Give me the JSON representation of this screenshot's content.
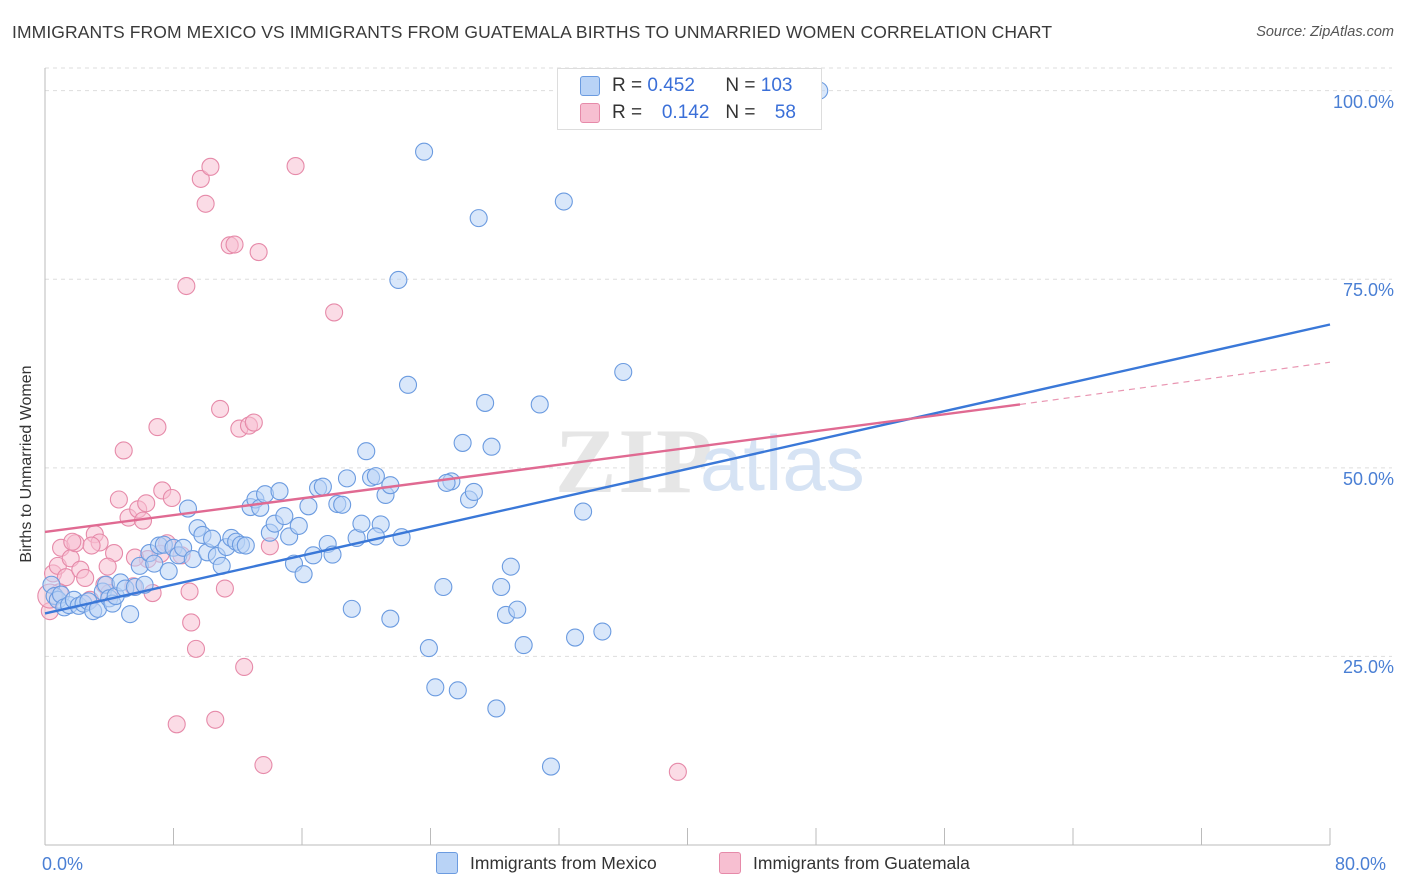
{
  "title": "IMMIGRANTS FROM MEXICO VS IMMIGRANTS FROM GUATEMALA BIRTHS TO UNMARRIED WOMEN CORRELATION CHART",
  "source": "Source: ZipAtlas.com",
  "watermark": {
    "zip": "ZIP",
    "atlas": "atlas"
  },
  "colors": {
    "blue": "#3a78d8",
    "blue_fill": "#b9d3f6",
    "pink": "#e06a92",
    "pink_fill": "#f7bfd1",
    "tick": "#4a7fd4",
    "grid": "#dddddd"
  },
  "stats": [
    {
      "r_label": "R =",
      "r": "0.452",
      "n_label": "N =",
      "n": "103"
    },
    {
      "r_label": "R =",
      "r": "0.142",
      "n_label": "N =",
      "n": "58"
    }
  ],
  "legend": [
    "Immigrants from Mexico",
    "Immigrants from Guatemala"
  ],
  "chart_data": {
    "type": "scatter",
    "ylabel": "Births to Unmarried Women",
    "xlabel": "",
    "xlim": [
      0,
      80
    ],
    "ylim": [
      0,
      103
    ],
    "x_tick_labels": [
      "0.0%",
      "80.0%"
    ],
    "y_ticks": [
      25,
      50,
      75,
      100
    ],
    "y_tick_labels": [
      "25.0%",
      "50.0%",
      "75.0%",
      "100.0%"
    ],
    "grid": true,
    "legend_position": "bottom",
    "series": [
      {
        "name": "Immigrants from Mexico",
        "trend": {
          "x": [
            0,
            80
          ],
          "y": [
            30.7,
            69.0
          ],
          "style": "solid"
        },
        "points": [
          [
            0.4,
            34.5
          ],
          [
            0.6,
            33.0
          ],
          [
            0.8,
            32.5
          ],
          [
            1.0,
            33.2
          ],
          [
            1.2,
            31.5
          ],
          [
            1.5,
            31.8
          ],
          [
            1.8,
            32.5
          ],
          [
            2.1,
            31.7
          ],
          [
            2.4,
            32.0
          ],
          [
            2.7,
            32.3
          ],
          [
            3.0,
            31.0
          ],
          [
            3.3,
            31.3
          ],
          [
            3.6,
            33.6
          ],
          [
            3.8,
            34.5
          ],
          [
            4.0,
            32.7
          ],
          [
            4.2,
            32.0
          ],
          [
            4.4,
            33.0
          ],
          [
            4.7,
            34.8
          ],
          [
            5.0,
            34.0
          ],
          [
            5.3,
            30.6
          ],
          [
            5.6,
            34.2
          ],
          [
            5.9,
            37.0
          ],
          [
            6.2,
            34.5
          ],
          [
            6.5,
            38.7
          ],
          [
            6.8,
            37.3
          ],
          [
            7.1,
            39.7
          ],
          [
            7.4,
            39.8
          ],
          [
            7.7,
            36.3
          ],
          [
            8.0,
            39.4
          ],
          [
            8.3,
            38.4
          ],
          [
            8.6,
            39.4
          ],
          [
            8.9,
            44.6
          ],
          [
            9.2,
            37.9
          ],
          [
            9.5,
            42.0
          ],
          [
            9.8,
            41.1
          ],
          [
            10.1,
            38.8
          ],
          [
            10.4,
            40.6
          ],
          [
            10.7,
            38.3
          ],
          [
            11.0,
            37.0
          ],
          [
            11.3,
            39.5
          ],
          [
            11.6,
            40.7
          ],
          [
            11.9,
            40.2
          ],
          [
            12.2,
            39.8
          ],
          [
            12.5,
            39.7
          ],
          [
            12.8,
            44.8
          ],
          [
            13.1,
            45.8
          ],
          [
            13.4,
            44.7
          ],
          [
            13.7,
            46.5
          ],
          [
            14.0,
            41.4
          ],
          [
            14.3,
            42.6
          ],
          [
            14.6,
            46.9
          ],
          [
            14.9,
            43.6
          ],
          [
            15.2,
            40.9
          ],
          [
            15.5,
            37.3
          ],
          [
            15.8,
            42.3
          ],
          [
            16.1,
            35.9
          ],
          [
            16.4,
            44.9
          ],
          [
            16.7,
            38.4
          ],
          [
            17.0,
            47.3
          ],
          [
            17.3,
            47.5
          ],
          [
            17.6,
            39.9
          ],
          [
            17.9,
            38.5
          ],
          [
            18.2,
            45.2
          ],
          [
            18.5,
            45.1
          ],
          [
            18.8,
            48.6
          ],
          [
            19.1,
            31.3
          ],
          [
            19.4,
            40.7
          ],
          [
            19.7,
            42.6
          ],
          [
            20.0,
            52.2
          ],
          [
            20.3,
            48.7
          ],
          [
            20.6,
            48.9
          ],
          [
            20.9,
            42.5
          ],
          [
            21.2,
            46.4
          ],
          [
            21.5,
            47.7
          ],
          [
            22.2,
            40.8
          ],
          [
            22.6,
            61.0
          ],
          [
            23.6,
            91.9
          ],
          [
            23.9,
            26.1
          ],
          [
            24.3,
            20.9
          ],
          [
            24.8,
            34.2
          ],
          [
            25.3,
            48.2
          ],
          [
            25.7,
            20.5
          ],
          [
            26.0,
            53.3
          ],
          [
            26.4,
            45.8
          ],
          [
            26.7,
            46.8
          ],
          [
            27.0,
            83.1
          ],
          [
            27.4,
            58.6
          ],
          [
            27.8,
            52.8
          ],
          [
            28.1,
            18.1
          ],
          [
            28.4,
            34.2
          ],
          [
            28.7,
            30.5
          ],
          [
            29.0,
            36.9
          ],
          [
            29.4,
            31.2
          ],
          [
            29.8,
            26.5
          ],
          [
            30.8,
            58.4
          ],
          [
            31.5,
            10.4
          ],
          [
            32.3,
            85.3
          ],
          [
            33.0,
            27.5
          ],
          [
            33.5,
            44.2
          ],
          [
            34.7,
            28.3
          ],
          [
            36.0,
            62.7
          ],
          [
            38.4,
            100.0
          ],
          [
            40.0,
            100.0
          ],
          [
            45.4,
            100.0
          ],
          [
            48.2,
            100.0
          ],
          [
            20.6,
            40.9
          ],
          [
            25.0,
            48.0
          ],
          [
            21.5,
            30.0
          ],
          [
            22.0,
            74.9
          ]
        ]
      },
      {
        "name": "Immigrants from Guatemala",
        "trend": {
          "x": [
            0,
            60.7
          ],
          "y": [
            41.5,
            58.4
          ],
          "style": "solid",
          "extension": {
            "x": [
              60.7,
              80
            ],
            "y": [
              58.4,
              64.0
            ],
            "style": "dashed"
          }
        },
        "points": [
          [
            0.3,
            31.0
          ],
          [
            0.5,
            36.0
          ],
          [
            0.8,
            37.0
          ],
          [
            1.0,
            39.4
          ],
          [
            1.3,
            35.5
          ],
          [
            1.6,
            38.0
          ],
          [
            1.9,
            40.0
          ],
          [
            2.2,
            36.5
          ],
          [
            2.5,
            35.4
          ],
          [
            2.8,
            32.5
          ],
          [
            3.1,
            41.2
          ],
          [
            3.4,
            40.1
          ],
          [
            3.7,
            34.5
          ],
          [
            4.0,
            33.4
          ],
          [
            4.3,
            38.7
          ],
          [
            4.6,
            45.8
          ],
          [
            4.9,
            52.3
          ],
          [
            5.2,
            43.4
          ],
          [
            5.5,
            34.3
          ],
          [
            5.8,
            44.5
          ],
          [
            6.1,
            43.0
          ],
          [
            6.4,
            37.9
          ],
          [
            6.7,
            33.4
          ],
          [
            7.0,
            55.4
          ],
          [
            7.3,
            47.0
          ],
          [
            7.6,
            40.0
          ],
          [
            7.9,
            46.0
          ],
          [
            8.2,
            16.0
          ],
          [
            8.5,
            38.4
          ],
          [
            8.8,
            74.1
          ],
          [
            9.1,
            29.5
          ],
          [
            9.4,
            26.0
          ],
          [
            9.7,
            88.3
          ],
          [
            10.0,
            85.0
          ],
          [
            10.3,
            89.9
          ],
          [
            10.6,
            16.6
          ],
          [
            10.9,
            57.8
          ],
          [
            11.2,
            34.0
          ],
          [
            11.5,
            79.5
          ],
          [
            11.8,
            79.6
          ],
          [
            12.1,
            55.2
          ],
          [
            12.4,
            23.6
          ],
          [
            12.7,
            55.6
          ],
          [
            13.0,
            56.0
          ],
          [
            13.3,
            78.6
          ],
          [
            13.6,
            10.6
          ],
          [
            14.0,
            39.6
          ],
          [
            15.6,
            90.0
          ],
          [
            18.0,
            70.6
          ],
          [
            39.4,
            9.7
          ],
          [
            0.9,
            33.5
          ],
          [
            1.7,
            40.2
          ],
          [
            2.9,
            39.7
          ],
          [
            3.9,
            36.9
          ],
          [
            5.6,
            38.1
          ],
          [
            6.3,
            45.3
          ],
          [
            7.2,
            38.6
          ],
          [
            9.0,
            33.6
          ]
        ]
      }
    ]
  }
}
